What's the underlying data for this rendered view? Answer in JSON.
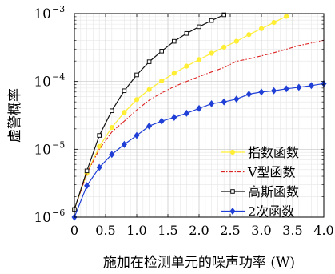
{
  "chart_data": {
    "type": "line",
    "title": "",
    "xlabel": "施加在检测单元的噪声功率 (W)",
    "ylabel": "虚警概率",
    "xlim": [
      0,
      4.0
    ],
    "ylim": [
      1e-06,
      0.001
    ],
    "yscale": "log",
    "grid": true,
    "legend_position": "bottom-right",
    "x_ticks": [
      {
        "value": 0,
        "label": "0"
      },
      {
        "value": 0.5,
        "label": "0.5"
      },
      {
        "value": 1.0,
        "label": "1.0"
      },
      {
        "value": 1.5,
        "label": "1.5"
      },
      {
        "value": 2.0,
        "label": "2.0"
      },
      {
        "value": 2.5,
        "label": "2.5"
      },
      {
        "value": 3.0,
        "label": "3.0"
      },
      {
        "value": 3.5,
        "label": "3.5"
      },
      {
        "value": 4.0,
        "label": "4.0"
      }
    ],
    "y_ticks": [
      {
        "value": 1e-06,
        "base": "10",
        "exp": "−6"
      },
      {
        "value": 1e-05,
        "base": "10",
        "exp": "−5"
      },
      {
        "value": 0.0001,
        "base": "10",
        "exp": "−4"
      },
      {
        "value": 0.001,
        "base": "10",
        "exp": "−3"
      }
    ],
    "series": [
      {
        "name": "指数函数",
        "color": "#ffee33",
        "marker": "circle",
        "dash": "",
        "x": [
          0,
          0.2,
          0.4,
          0.6,
          0.8,
          1.0,
          1.2,
          1.4,
          1.6,
          1.8,
          2.0,
          2.2,
          2.4,
          2.6,
          2.8,
          3.0,
          3.2,
          3.4
        ],
        "y": [
          1.3e-06,
          4.4e-06,
          1.1e-05,
          2.1e-05,
          3.5e-05,
          5.4e-05,
          7.6e-05,
          0.000102,
          0.000132,
          0.000168,
          0.00021,
          0.00026,
          0.00032,
          0.00039,
          0.00049,
          0.0006,
          0.00074,
          0.00091
        ]
      },
      {
        "name": "V型函数",
        "color": "#dd2222",
        "marker": "none",
        "dash": "5,2,1.5,2",
        "x": [
          0,
          0.2,
          0.4,
          0.6,
          0.8,
          1.0,
          1.2,
          1.4,
          1.6,
          1.8,
          2.0,
          2.2,
          2.4,
          2.6,
          2.8,
          3.0,
          3.2,
          3.4,
          3.6,
          3.8,
          4.0
        ],
        "y": [
          1.3e-06,
          4.4e-06,
          1e-05,
          1.8e-05,
          2.6e-05,
          3.8e-05,
          5.3e-05,
          6.8e-05,
          8.4e-05,
          0.0001,
          0.000118,
          0.000138,
          0.00016,
          0.000198,
          0.000215,
          0.000238,
          0.000265,
          0.000298,
          0.000338,
          0.000368,
          0.000405
        ]
      },
      {
        "name": "高斯函数",
        "color": "#111111",
        "marker": "square",
        "dash": "",
        "x": [
          0,
          0.2,
          0.4,
          0.6,
          0.8,
          1.0,
          1.2,
          1.4,
          1.6,
          1.8,
          2.0,
          2.2,
          2.4
        ],
        "y": [
          1.3e-06,
          4.8e-06,
          1.6e-05,
          3.7e-05,
          7.3e-05,
          0.000125,
          0.000195,
          0.00028,
          0.00039,
          0.00051,
          0.00064,
          0.00079,
          0.00096
        ]
      },
      {
        "name": "2次函数",
        "color": "#1f3fd6",
        "marker": "diamond",
        "dash": "",
        "x": [
          0,
          0.2,
          0.4,
          0.6,
          0.8,
          1.0,
          1.2,
          1.4,
          1.6,
          1.8,
          2.0,
          2.2,
          2.4,
          2.6,
          2.8,
          3.0,
          3.2,
          3.4,
          3.6,
          3.8,
          4.0
        ],
        "y": [
          1e-06,
          2.9e-06,
          5.4e-06,
          8.4e-06,
          1.18e-05,
          1.6e-05,
          2.2e-05,
          2.6e-05,
          2.95e-05,
          3.4e-05,
          4e-05,
          4.7e-05,
          5e-05,
          5.5e-05,
          6.5e-05,
          7e-05,
          7.3e-05,
          7.8e-05,
          8.2e-05,
          8.7e-05,
          9.3e-05
        ]
      }
    ]
  }
}
